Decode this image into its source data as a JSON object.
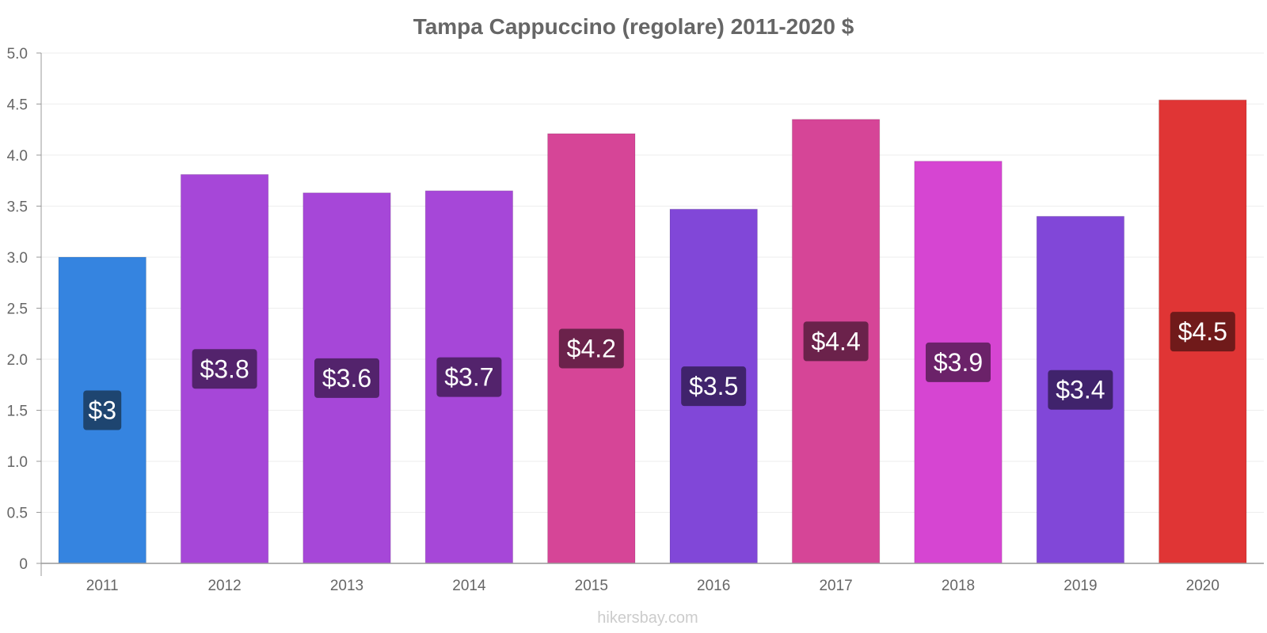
{
  "chart_data": {
    "type": "bar",
    "title": "Tampa Cappuccino (regolare) 2011-2020 $",
    "xlabel": "",
    "ylabel": "",
    "ylim": [
      0,
      5
    ],
    "yticks": [
      0,
      0.5,
      1,
      1.5,
      2,
      2.5,
      3,
      3.5,
      4,
      4.5,
      5
    ],
    "ytick_labels": [
      "0",
      "0.5",
      "1.0",
      "1.5",
      "2.0",
      "2.5",
      "3.0",
      "3.5",
      "4.0",
      "4.5",
      "5.0"
    ],
    "grid": true,
    "categories": [
      "2011",
      "2012",
      "2013",
      "2014",
      "2015",
      "2016",
      "2017",
      "2018",
      "2019",
      "2020"
    ],
    "values": [
      3.0,
      3.81,
      3.63,
      3.65,
      4.21,
      3.47,
      4.35,
      3.94,
      3.4,
      4.54
    ],
    "data_labels": [
      "$3",
      "$3.8",
      "$3.6",
      "$3.7",
      "$4.2",
      "$3.5",
      "$4.4",
      "$3.9",
      "$3.4",
      "$4.5"
    ],
    "bar_colors": [
      "#3584e0",
      "#a647d8",
      "#a647d8",
      "#a647d8",
      "#d64597",
      "#8147d8",
      "#d64597",
      "#d645d2",
      "#8147d8",
      "#e03535"
    ],
    "label_colors": [
      "#1e4570",
      "#53236c",
      "#53236c",
      "#53236c",
      "#6b224b",
      "#40236c",
      "#6b224b",
      "#6b2269",
      "#40236c",
      "#701a1a"
    ],
    "credit": "hikersbay.com"
  }
}
